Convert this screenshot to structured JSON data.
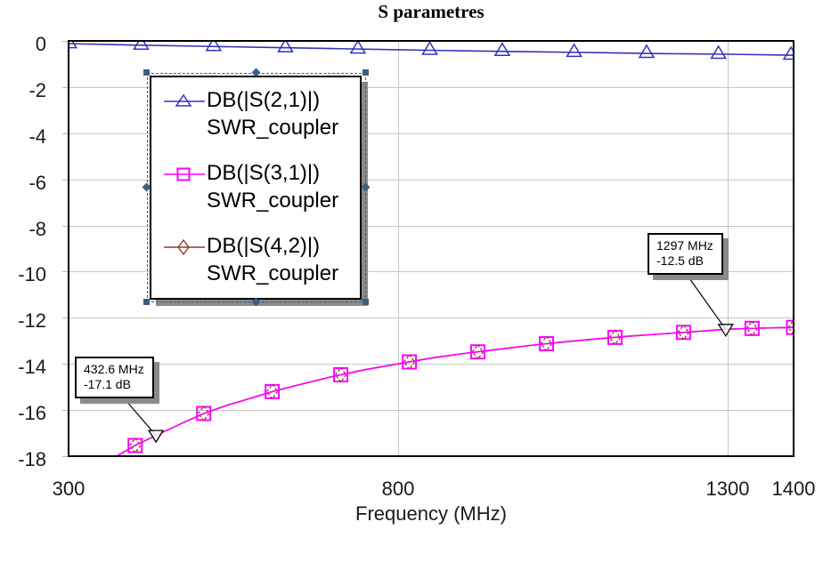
{
  "title": "S parametres",
  "axes": {
    "x": {
      "label": "Frequency (MHz)",
      "min": 300,
      "max": 1400,
      "ticks": [
        "300",
        "800",
        "1300",
        "1400"
      ],
      "tick_values": [
        300,
        800,
        1300,
        1400
      ],
      "gridline_values": [
        800,
        1300
      ]
    },
    "y": {
      "min": -18,
      "max": 0,
      "ticks": [
        "0",
        "-2",
        "-4",
        "-6",
        "-8",
        "-10",
        "-12",
        "-14",
        "-16",
        "-18"
      ],
      "tick_values": [
        0,
        -2,
        -4,
        -6,
        -8,
        -10,
        -12,
        -14,
        -16,
        -18
      ],
      "gridline_values": [
        -2,
        -4,
        -6,
        -8,
        -10,
        -12,
        -14,
        -16
      ]
    }
  },
  "legend": {
    "selected": true,
    "entries": [
      {
        "label1": "DB(|S(2,1)|)",
        "label2": "SWR_coupler",
        "color": "#3333bb",
        "marker": "triangle-up"
      },
      {
        "label1": "DB(|S(3,1)|)",
        "label2": "SWR_coupler",
        "color": "#ff00ff",
        "marker": "square"
      },
      {
        "label1": "DB(|S(4,2)|)",
        "label2": "SWR_coupler",
        "color": "#993333",
        "marker": "diamond"
      }
    ]
  },
  "colors": {
    "grid": "#c6c6c6",
    "tick": "#b8b8b8",
    "frame": "#000000",
    "shadow": "#8a8a8a",
    "selection": "#3a5d85",
    "text": "#1a1a1a",
    "annotation_pointer": "#000000"
  },
  "chart_data": {
    "type": "line",
    "title": "S parametres",
    "xlabel": "Frequency (MHz)",
    "ylabel": "",
    "xlim": [
      300,
      1400
    ],
    "ylim": [
      -18,
      0
    ],
    "grid": true,
    "legend_position": "upper-left-inside",
    "series": [
      {
        "name": "DB(|S(2,1)|) SWR_coupler",
        "color": "#3333bb",
        "marker": "triangle-up",
        "x": [
          300,
          400,
          500,
          600,
          700,
          800,
          900,
          1000,
          1100,
          1200,
          1300,
          1400
        ],
        "y": [
          -0.12,
          -0.18,
          -0.23,
          -0.28,
          -0.33,
          -0.38,
          -0.43,
          -0.47,
          -0.51,
          -0.55,
          -0.58,
          -0.62
        ],
        "marker_x": [
          301,
          410,
          520,
          629,
          739,
          848,
          958,
          1067,
          1177,
          1286,
          1396
        ]
      },
      {
        "name": "DB(|S(3,1)|) SWR_coupler",
        "color": "#ff00ff",
        "marker": "square",
        "x": [
          355,
          370,
          400,
          432.6,
          470,
          505,
          540,
          575,
          609,
          650,
          700,
          750,
          800,
          850,
          900,
          950,
          1000,
          1050,
          1100,
          1150,
          1200,
          1250,
          1297,
          1350,
          1400
        ],
        "y": [
          -18.6,
          -18.05,
          -17.55,
          -17.1,
          -16.6,
          -16.15,
          -15.8,
          -15.5,
          -15.2,
          -14.9,
          -14.55,
          -14.25,
          -14.0,
          -13.75,
          -13.55,
          -13.38,
          -13.2,
          -13.05,
          -12.92,
          -12.8,
          -12.7,
          -12.6,
          -12.5,
          -12.45,
          -12.42
        ],
        "marker_x": [
          401,
          505,
          609,
          713,
          817,
          921,
          1025,
          1129,
          1233,
          1337,
          1400
        ]
      },
      {
        "name": "DB(|S(4,2)|) SWR_coupler",
        "color": "#993333",
        "marker": "diamond",
        "x": [
          355,
          370,
          400,
          432.6,
          470,
          505,
          540,
          575,
          609,
          650,
          700,
          750,
          800,
          850,
          900,
          950,
          1000,
          1050,
          1100,
          1150,
          1200,
          1250,
          1297,
          1350,
          1400
        ],
        "y": [
          -18.6,
          -18.05,
          -17.55,
          -17.1,
          -16.6,
          -16.15,
          -15.8,
          -15.5,
          -15.2,
          -14.9,
          -14.55,
          -14.25,
          -14.0,
          -13.75,
          -13.55,
          -13.38,
          -13.2,
          -13.05,
          -12.92,
          -12.8,
          -12.7,
          -12.6,
          -12.5,
          -12.45,
          -12.42
        ],
        "marker_x": [
          401,
          505,
          609,
          713,
          817,
          921,
          1025,
          1129,
          1233,
          1337,
          1400
        ]
      }
    ],
    "annotations": [
      {
        "freq_label": "432.6 MHz",
        "value_label": "-17.1 dB",
        "x": 432.6,
        "y": -17.1
      },
      {
        "freq_label": "1297 MHz",
        "value_label": "-12.5 dB",
        "x": 1297,
        "y": -12.5
      }
    ]
  }
}
